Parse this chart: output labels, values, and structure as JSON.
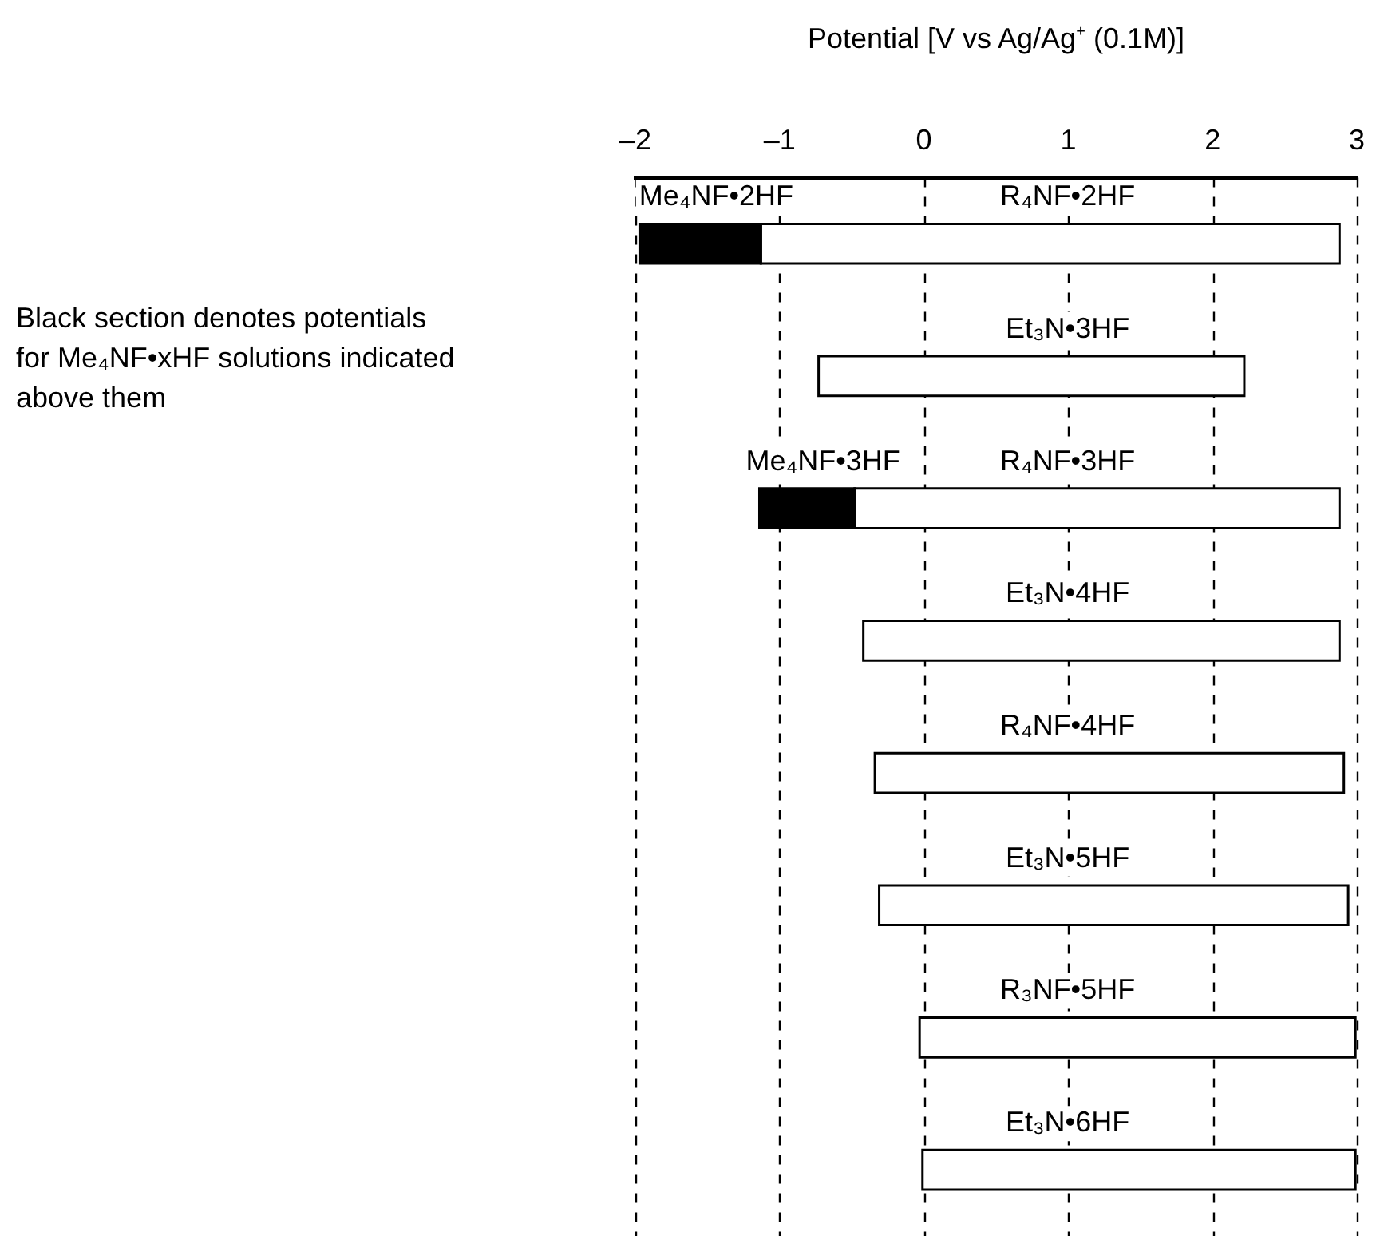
{
  "chart_data": {
    "type": "bar",
    "orientation": "horizontal",
    "xlabel": "Potential [V vs Ag/Ag⁺ (0.1M)]",
    "categories": [
      "R₄NF•2HF",
      "Et₃N•3HF",
      "R₄NF•3HF",
      "Et₃N•4HF",
      "R₄NF•4HF",
      "Et₃N•5HF",
      "R₃NF•5HF",
      "Et₃N•6HF"
    ],
    "series": [
      {
        "color": "#ffffff",
        "base": [
          -1.13,
          -0.73,
          -0.48,
          -0.42,
          -0.34,
          -0.31,
          -0.03,
          -0.01
        ],
        "values": [
          4.01,
          2.95,
          3.36,
          3.3,
          3.25,
          3.25,
          3.02,
          3.0
        ]
      },
      {
        "name": "Me₄NF•2HF",
        "color": "#000000",
        "base": [
          -1.97,
          null,
          null,
          null,
          null,
          null,
          null,
          null
        ],
        "values": [
          0.84,
          null,
          null,
          null,
          null,
          null,
          null,
          null
        ]
      },
      {
        "name": "Me₄NF•3HF",
        "color": "#000000",
        "base": [
          null,
          null,
          -1.14,
          null,
          null,
          null,
          null,
          null
        ],
        "values": [
          null,
          null,
          0.66,
          null,
          null,
          null,
          null,
          null
        ]
      }
    ],
    "xlim": [
      -2,
      3
    ],
    "xticks": [
      {
        "value": -2,
        "label": "–2"
      },
      {
        "value": -1,
        "label": "–1"
      },
      0,
      1,
      2,
      3
    ],
    "grid": "x",
    "line_style": "dashed",
    "annotations": [
      "Black section denotes potentials for Me₄NF•xHF solutions indicated above them"
    ]
  }
}
